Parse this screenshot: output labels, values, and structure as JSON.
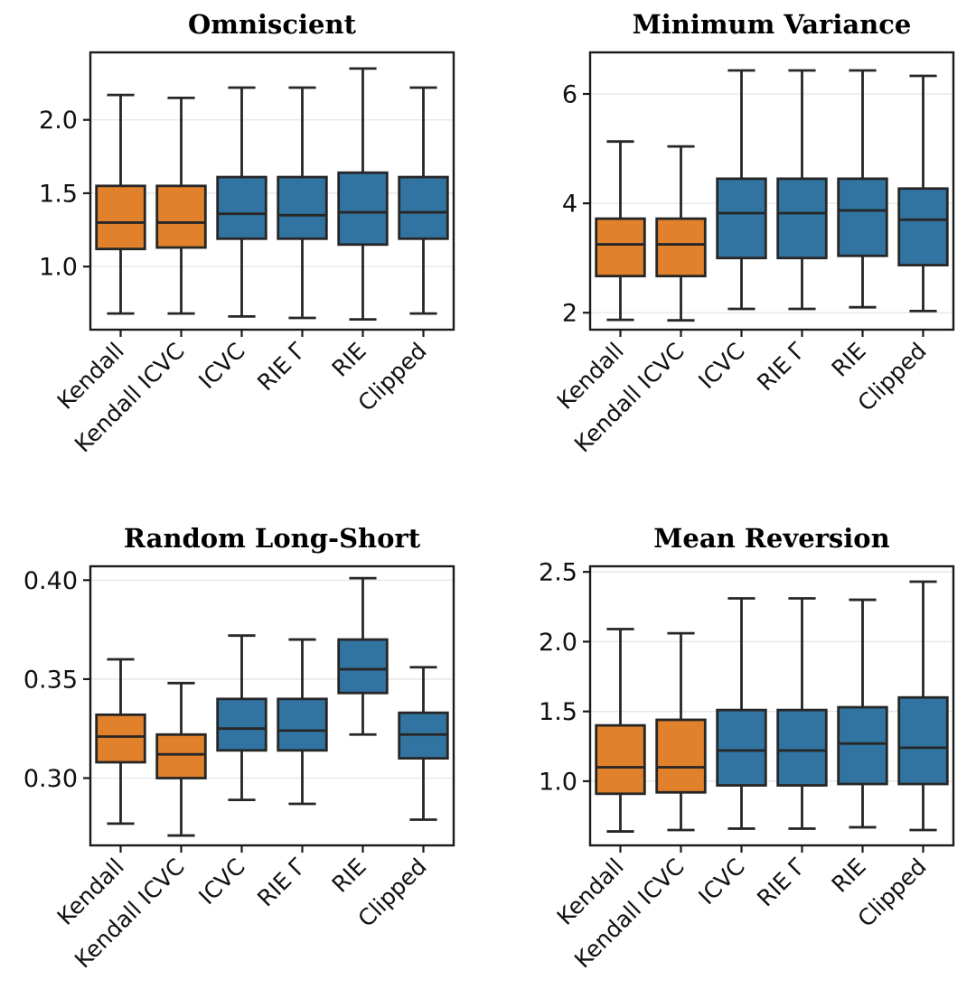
{
  "colors": {
    "box_orange": "#e1812c",
    "box_blue": "#3274a1",
    "box_edge": "#262626",
    "spine": "#1a1a1a",
    "grid": "#e5e5e5",
    "background": "#ffffff",
    "text": "#111111"
  },
  "categories": [
    "Kendall",
    "Kendall ICVC",
    "ICVC",
    "RIE Γ",
    "RIE",
    "Clipped"
  ],
  "chart_data": [
    {
      "type": "box",
      "title": "Omniscient",
      "xlabel": "",
      "ylabel": "",
      "grid": "horizontal-y",
      "legend": null,
      "ylim": [
        0.57,
        2.46
      ],
      "yticks": [
        {
          "value": 1.0,
          "label": "1.0"
        },
        {
          "value": 1.5,
          "label": "1.5"
        },
        {
          "value": 2.0,
          "label": "2.0"
        }
      ],
      "boxes": [
        {
          "category": "Kendall",
          "color": "box_orange",
          "whislo": 0.68,
          "q1": 1.12,
          "med": 1.3,
          "q3": 1.55,
          "whishi": 2.17
        },
        {
          "category": "Kendall ICVC",
          "color": "box_orange",
          "whislo": 0.68,
          "q1": 1.13,
          "med": 1.3,
          "q3": 1.55,
          "whishi": 2.15
        },
        {
          "category": "ICVC",
          "color": "box_blue",
          "whislo": 0.66,
          "q1": 1.19,
          "med": 1.36,
          "q3": 1.61,
          "whishi": 2.22
        },
        {
          "category": "RIE Γ",
          "color": "box_blue",
          "whislo": 0.65,
          "q1": 1.19,
          "med": 1.35,
          "q3": 1.61,
          "whishi": 2.22
        },
        {
          "category": "RIE",
          "color": "box_blue",
          "whislo": 0.64,
          "q1": 1.15,
          "med": 1.37,
          "q3": 1.64,
          "whishi": 2.35
        },
        {
          "category": "Clipped",
          "color": "box_blue",
          "whislo": 0.68,
          "q1": 1.19,
          "med": 1.37,
          "q3": 1.61,
          "whishi": 2.22
        }
      ]
    },
    {
      "type": "box",
      "title": "Minimum Variance",
      "xlabel": "",
      "ylabel": "",
      "grid": "horizontal-y",
      "legend": null,
      "ylim": [
        1.69,
        6.76
      ],
      "yticks": [
        {
          "value": 2,
          "label": "2"
        },
        {
          "value": 4,
          "label": "4"
        },
        {
          "value": 6,
          "label": "6"
        }
      ],
      "boxes": [
        {
          "category": "Kendall",
          "color": "box_orange",
          "whislo": 1.87,
          "q1": 2.67,
          "med": 3.25,
          "q3": 3.72,
          "whishi": 5.13
        },
        {
          "category": "Kendall ICVC",
          "color": "box_orange",
          "whislo": 1.86,
          "q1": 2.67,
          "med": 3.25,
          "q3": 3.72,
          "whishi": 5.04
        },
        {
          "category": "ICVC",
          "color": "box_blue",
          "whislo": 2.07,
          "q1": 3.0,
          "med": 3.82,
          "q3": 4.45,
          "whishi": 6.43
        },
        {
          "category": "RIE Γ",
          "color": "box_blue",
          "whislo": 2.07,
          "q1": 3.0,
          "med": 3.82,
          "q3": 4.45,
          "whishi": 6.43
        },
        {
          "category": "RIE",
          "color": "box_blue",
          "whislo": 2.1,
          "q1": 3.04,
          "med": 3.87,
          "q3": 4.45,
          "whishi": 6.43
        },
        {
          "category": "Clipped",
          "color": "box_blue",
          "whislo": 2.03,
          "q1": 2.87,
          "med": 3.7,
          "q3": 4.27,
          "whishi": 6.33
        }
      ]
    },
    {
      "type": "box",
      "title": "Random Long-Short",
      "xlabel": "",
      "ylabel": "",
      "grid": "horizontal-y",
      "legend": null,
      "ylim": [
        0.266,
        0.407
      ],
      "yticks": [
        {
          "value": 0.3,
          "label": "0.30"
        },
        {
          "value": 0.35,
          "label": "0.35"
        },
        {
          "value": 0.4,
          "label": "0.40"
        }
      ],
      "boxes": [
        {
          "category": "Kendall",
          "color": "box_orange",
          "whislo": 0.277,
          "q1": 0.308,
          "med": 0.321,
          "q3": 0.332,
          "whishi": 0.36
        },
        {
          "category": "Kendall ICVC",
          "color": "box_orange",
          "whislo": 0.271,
          "q1": 0.3,
          "med": 0.312,
          "q3": 0.322,
          "whishi": 0.348
        },
        {
          "category": "ICVC",
          "color": "box_blue",
          "whislo": 0.289,
          "q1": 0.314,
          "med": 0.325,
          "q3": 0.34,
          "whishi": 0.372
        },
        {
          "category": "RIE Γ",
          "color": "box_blue",
          "whislo": 0.287,
          "q1": 0.314,
          "med": 0.324,
          "q3": 0.34,
          "whishi": 0.37
        },
        {
          "category": "RIE",
          "color": "box_blue",
          "whislo": 0.322,
          "q1": 0.343,
          "med": 0.355,
          "q3": 0.37,
          "whishi": 0.401
        },
        {
          "category": "Clipped",
          "color": "box_blue",
          "whislo": 0.279,
          "q1": 0.31,
          "med": 0.322,
          "q3": 0.333,
          "whishi": 0.356
        }
      ]
    },
    {
      "type": "box",
      "title": "Mean Reversion",
      "xlabel": "",
      "ylabel": "",
      "grid": "horizontal-y",
      "legend": null,
      "ylim": [
        0.54,
        2.54
      ],
      "yticks": [
        {
          "value": 1.0,
          "label": "1.0"
        },
        {
          "value": 1.5,
          "label": "1.5"
        },
        {
          "value": 2.0,
          "label": "2.0"
        },
        {
          "value": 2.5,
          "label": "2.5"
        }
      ],
      "boxes": [
        {
          "category": "Kendall",
          "color": "box_orange",
          "whislo": 0.64,
          "q1": 0.91,
          "med": 1.1,
          "q3": 1.4,
          "whishi": 2.09
        },
        {
          "category": "Kendall ICVC",
          "color": "box_orange",
          "whislo": 0.65,
          "q1": 0.92,
          "med": 1.1,
          "q3": 1.44,
          "whishi": 2.06
        },
        {
          "category": "ICVC",
          "color": "box_blue",
          "whislo": 0.66,
          "q1": 0.97,
          "med": 1.22,
          "q3": 1.51,
          "whishi": 2.31
        },
        {
          "category": "RIE Γ",
          "color": "box_blue",
          "whislo": 0.66,
          "q1": 0.97,
          "med": 1.22,
          "q3": 1.51,
          "whishi": 2.31
        },
        {
          "category": "RIE",
          "color": "box_blue",
          "whislo": 0.67,
          "q1": 0.98,
          "med": 1.27,
          "q3": 1.53,
          "whishi": 2.3
        },
        {
          "category": "Clipped",
          "color": "box_blue",
          "whislo": 0.65,
          "q1": 0.98,
          "med": 1.24,
          "q3": 1.6,
          "whishi": 2.43
        }
      ]
    }
  ]
}
